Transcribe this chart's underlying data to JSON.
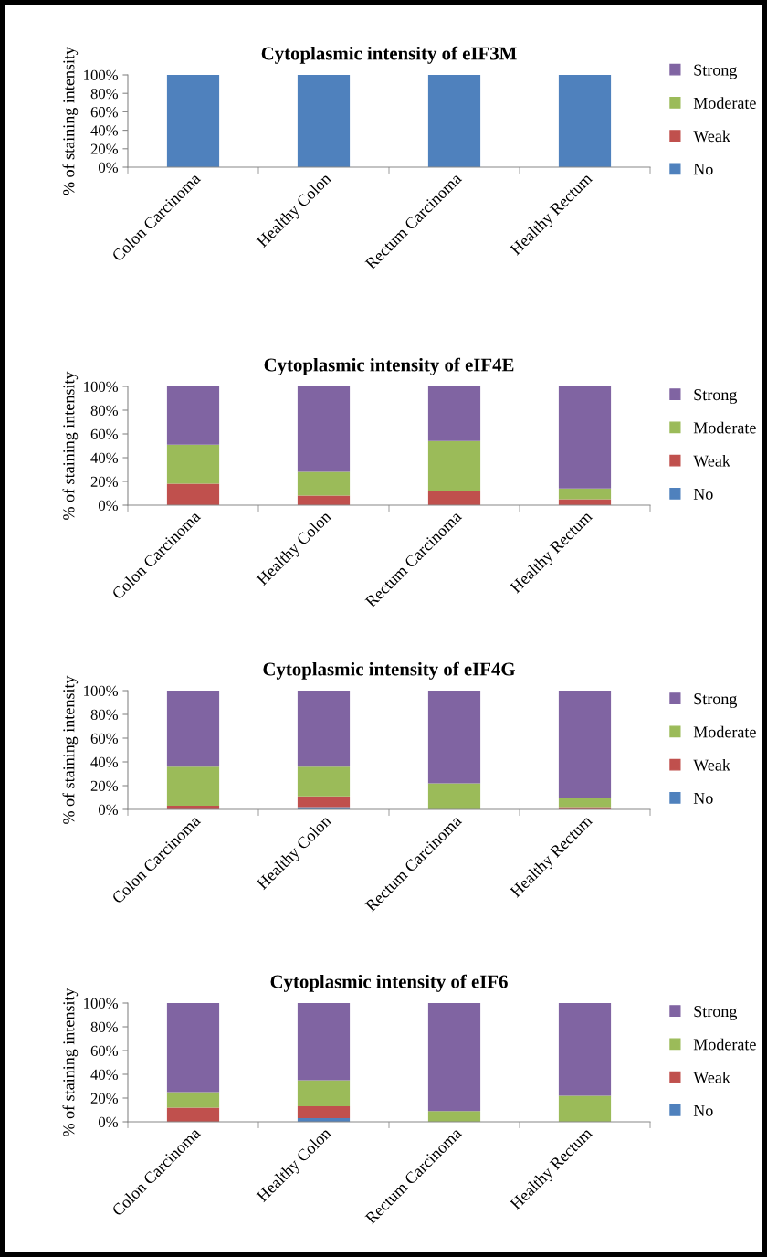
{
  "chart_data": [
    {
      "type": "bar",
      "title": "Cytoplasmic intensity of eIF3M",
      "ylabel": "% of staining intensity",
      "categories": [
        "Colon Carcinoma",
        "Healthy Colon",
        "Rectum Carcinoma",
        "Healthy Rectum"
      ],
      "stacked": true,
      "legend": "right",
      "grid": false,
      "ylim": [
        0,
        100
      ],
      "yticks": [
        {
          "value": 0,
          "label": "0%"
        },
        {
          "value": 20,
          "label": "20%"
        },
        {
          "value": 40,
          "label": "40%"
        },
        {
          "value": 60,
          "label": "60%"
        },
        {
          "value": 80,
          "label": "80%"
        },
        {
          "value": 100,
          "label": "100%"
        }
      ],
      "series": [
        {
          "name": "No",
          "color": "#4f81bd",
          "values": [
            100,
            100,
            100,
            100
          ]
        },
        {
          "name": "Weak",
          "color": "#c0504d",
          "values": [
            0,
            0,
            0,
            0
          ]
        },
        {
          "name": "Moderate",
          "color": "#9bbb59",
          "values": [
            0,
            0,
            0,
            0
          ]
        },
        {
          "name": "Strong",
          "color": "#8064a2",
          "values": [
            0,
            0,
            0,
            0
          ]
        }
      ]
    },
    {
      "type": "bar",
      "title": "Cytoplasmic intensity of eIF4E",
      "ylabel": "% of staining intensity",
      "categories": [
        "Colon Carcinoma",
        "Healthy Colon",
        "Rectum Carcinoma",
        "Healthy Rectum"
      ],
      "stacked": true,
      "legend": "right",
      "grid": false,
      "ylim": [
        0,
        100
      ],
      "yticks": [
        {
          "value": 0,
          "label": "0%"
        },
        {
          "value": 20,
          "label": "20%"
        },
        {
          "value": 40,
          "label": "40%"
        },
        {
          "value": 60,
          "label": "60%"
        },
        {
          "value": 80,
          "label": "80%"
        },
        {
          "value": 100,
          "label": "100%"
        }
      ],
      "series": [
        {
          "name": "No",
          "color": "#4f81bd",
          "values": [
            0,
            0,
            0,
            0
          ]
        },
        {
          "name": "Weak",
          "color": "#c0504d",
          "values": [
            18,
            8,
            12,
            5
          ]
        },
        {
          "name": "Moderate",
          "color": "#9bbb59",
          "values": [
            33,
            20,
            42,
            9
          ]
        },
        {
          "name": "Strong",
          "color": "#8064a2",
          "values": [
            49,
            72,
            46,
            86
          ]
        }
      ]
    },
    {
      "type": "bar",
      "title": "Cytoplasmic intensity of eIF4G",
      "ylabel": "% of staining intensity",
      "categories": [
        "Colon Carcinoma",
        "Healthy Colon",
        "Rectum Carcinoma",
        "Healthy Rectum"
      ],
      "stacked": true,
      "legend": "right",
      "grid": false,
      "ylim": [
        0,
        100
      ],
      "yticks": [
        {
          "value": 0,
          "label": "0%"
        },
        {
          "value": 20,
          "label": "20%"
        },
        {
          "value": 40,
          "label": "40%"
        },
        {
          "value": 60,
          "label": "60%"
        },
        {
          "value": 80,
          "label": "80%"
        },
        {
          "value": 100,
          "label": "100%"
        }
      ],
      "series": [
        {
          "name": "No",
          "color": "#4f81bd",
          "values": [
            0,
            2,
            0,
            0
          ]
        },
        {
          "name": "Weak",
          "color": "#c0504d",
          "values": [
            3,
            9,
            0,
            2
          ]
        },
        {
          "name": "Moderate",
          "color": "#9bbb59",
          "values": [
            33,
            25,
            22,
            8
          ]
        },
        {
          "name": "Strong",
          "color": "#8064a2",
          "values": [
            64,
            64,
            78,
            90
          ]
        }
      ]
    },
    {
      "type": "bar",
      "title": "Cytoplasmic intensity of eIF6",
      "ylabel": "% of staining intensity",
      "categories": [
        "Colon Carcinoma",
        "Healthy Colon",
        "Rectum Carcinoma",
        "Healthy Rectum"
      ],
      "stacked": true,
      "legend": "right",
      "grid": false,
      "ylim": [
        0,
        100
      ],
      "yticks": [
        {
          "value": 0,
          "label": "0%"
        },
        {
          "value": 20,
          "label": "20%"
        },
        {
          "value": 40,
          "label": "40%"
        },
        {
          "value": 60,
          "label": "60%"
        },
        {
          "value": 80,
          "label": "80%"
        },
        {
          "value": 100,
          "label": "100%"
        }
      ],
      "series": [
        {
          "name": "No",
          "color": "#4f81bd",
          "values": [
            0,
            3,
            0,
            0
          ]
        },
        {
          "name": "Weak",
          "color": "#c0504d",
          "values": [
            12,
            10,
            0,
            0
          ]
        },
        {
          "name": "Moderate",
          "color": "#9bbb59",
          "values": [
            13,
            22,
            9,
            22
          ]
        },
        {
          "name": "Strong",
          "color": "#8064a2",
          "values": [
            75,
            65,
            91,
            78
          ]
        }
      ]
    }
  ]
}
